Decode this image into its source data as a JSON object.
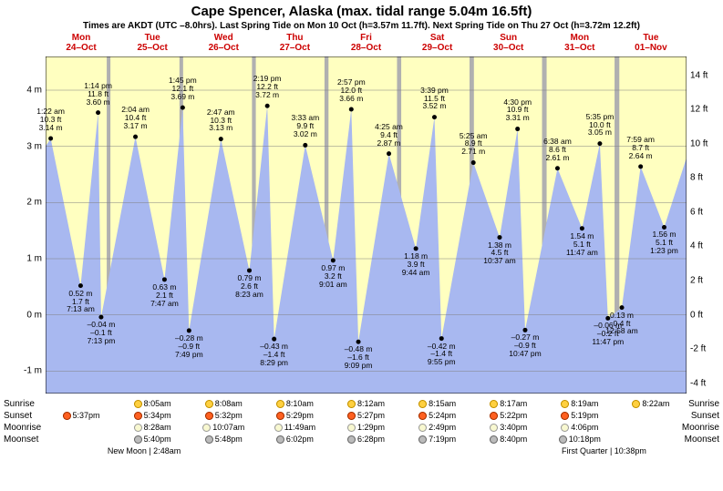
{
  "title": "Cape Spencer, Alaska (max. tidal range 5.04m 16.5ft)",
  "subtitle": "Times are AKDT (UTC –8.0hrs). Last Spring Tide on Mon 10 Oct (h=3.57m 11.7ft). Next Spring Tide on Thu 27 Oct (h=3.72m 12.2ft)",
  "days": [
    {
      "dow": "Mon",
      "date": "24–Oct",
      "sunrise": "",
      "sunset": "5:37pm",
      "moonrise": "",
      "moonset": ""
    },
    {
      "dow": "Tue",
      "date": "25–Oct",
      "sunrise": "8:05am",
      "sunset": "5:34pm",
      "moonrise": "8:28am",
      "moonset": "5:40pm"
    },
    {
      "dow": "Wed",
      "date": "26–Oct",
      "sunrise": "8:08am",
      "sunset": "5:32pm",
      "moonrise": "10:07am",
      "moonset": "5:48pm"
    },
    {
      "dow": "Thu",
      "date": "27–Oct",
      "sunrise": "8:10am",
      "sunset": "5:29pm",
      "moonrise": "11:49am",
      "moonset": "6:02pm"
    },
    {
      "dow": "Fri",
      "date": "28–Oct",
      "sunrise": "8:12am",
      "sunset": "5:27pm",
      "moonrise": "1:29pm",
      "moonset": "6:28pm"
    },
    {
      "dow": "Sat",
      "date": "29–Oct",
      "sunrise": "8:15am",
      "sunset": "5:24pm",
      "moonrise": "2:49pm",
      "moonset": "7:19pm"
    },
    {
      "dow": "Sun",
      "date": "30–Oct",
      "sunrise": "8:17am",
      "sunset": "5:22pm",
      "moonrise": "3:40pm",
      "moonset": "8:40pm"
    },
    {
      "dow": "Mon",
      "date": "31–Oct",
      "sunrise": "8:19am",
      "sunset": "5:19pm",
      "moonrise": "4:06pm",
      "moonset": "10:18pm"
    },
    {
      "dow": "Tue",
      "date": "01–Nov",
      "sunrise": "8:22am",
      "sunset": "",
      "moonrise": "",
      "moonset": ""
    }
  ],
  "axis": {
    "m_ticks": [
      -1,
      0,
      1,
      2,
      3,
      4
    ],
    "ft_ticks": [
      -4,
      -2,
      0,
      2,
      4,
      6,
      8,
      10,
      12,
      14
    ],
    "ymin_m": -1.4,
    "ymax_m": 4.6
  },
  "colors": {
    "tide_fill": "#a8b8f0",
    "day_band": "#ffffc0",
    "night_band": "#b0b0b0",
    "grid": "#808080",
    "date_text": "#cc0000",
    "dot": "#000000"
  },
  "day_bands": [
    {
      "start": 0.0,
      "end": 0.334
    },
    {
      "start": 0.354,
      "end": 0.731
    },
    {
      "start": 0.751,
      "end": 1.127
    },
    {
      "start": 1.148,
      "end": 1.523
    },
    {
      "start": 1.545,
      "end": 1.919
    },
    {
      "start": 1.942,
      "end": 2.315
    },
    {
      "start": 2.339,
      "end": 2.711
    },
    {
      "start": 2.736,
      "end": 3.107
    },
    {
      "start": 3.133,
      "end": 3.5
    }
  ],
  "tide_points": [
    {
      "x": 0.0,
      "m": 3.0
    },
    {
      "x": 0.042,
      "m": 3.14,
      "t": "1:22 am",
      "ft": "10.3 ft",
      "mlab": "3.14 m",
      "hi": true
    },
    {
      "x": 0.287,
      "m": 0.52,
      "t": "",
      "ft": "0.52 m",
      "mlab": "1.7 ft",
      "tl": "7:13 am"
    },
    {
      "x": 0.43,
      "m": 3.6,
      "t": "1:14 pm",
      "ft": "11.8 ft",
      "mlab": "3.60 m",
      "hi": true
    },
    {
      "x": 0.455,
      "m": -0.04,
      "t": "",
      "ft": "–0.04 m",
      "mlab": "–0.1 ft",
      "tl": "7:13 pm",
      "lo": true
    },
    {
      "x": 0.736,
      "m": 3.17,
      "t": "2:04 am",
      "ft": "10.4 ft",
      "mlab": "3.17 m",
      "hi": true
    },
    {
      "x": 0.974,
      "m": 0.63,
      "t": "",
      "ft": "0.63 m",
      "mlab": "2.1 ft",
      "tl": "7:47 am"
    },
    {
      "x": 1.123,
      "m": 3.69,
      "t": "1:45 pm",
      "ft": "12.1 ft",
      "mlab": "3.69 m",
      "hi": true
    },
    {
      "x": 1.175,
      "m": -0.28,
      "t": "",
      "ft": "–0.28 m",
      "mlab": "–0.9 ft",
      "tl": "7:49 pm",
      "lo": true
    },
    {
      "x": 1.436,
      "m": 3.13,
      "t": "2:47 am",
      "ft": "10.3 ft",
      "mlab": "3.13 m",
      "hi": true
    },
    {
      "x": 1.669,
      "m": 0.79,
      "t": "",
      "ft": "0.79 m",
      "mlab": "2.6 ft",
      "tl": "8:23 am"
    },
    {
      "x": 1.816,
      "m": 3.72,
      "t": "2:19 pm",
      "ft": "12.2 ft",
      "mlab": "3.72 m",
      "hi": true
    },
    {
      "x": 1.872,
      "m": -0.43,
      "t": "",
      "ft": "–0.43 m",
      "mlab": "–1.4 ft",
      "tl": "8:29 pm",
      "lo": true
    },
    {
      "x": 2.127,
      "m": 3.02,
      "t": "3:33 am",
      "ft": "9.9 ft",
      "mlab": "3.02 m",
      "hi": true
    },
    {
      "x": 2.355,
      "m": 0.97,
      "t": "",
      "ft": "0.97 m",
      "mlab": "3.2 ft",
      "tl": "9:01 am"
    },
    {
      "x": 2.504,
      "m": 3.66,
      "t": "2:57 pm",
      "ft": "12.0 ft",
      "mlab": "3.66 m",
      "hi": true
    },
    {
      "x": 2.562,
      "m": -0.48,
      "t": "",
      "ft": "–0.48 m",
      "mlab": "–1.6 ft",
      "tl": "9:09 pm",
      "lo": true
    },
    {
      "x": 2.812,
      "m": 2.87,
      "t": "4:25 am",
      "ft": "9.4 ft",
      "mlab": "2.87 m",
      "hi": true
    },
    {
      "x": 3.033,
      "m": 1.18,
      "t": "",
      "ft": "1.18 m",
      "mlab": "3.9 ft",
      "tl": "9:44 am"
    },
    {
      "x": 3.185,
      "m": 3.52,
      "t": "3:39 pm",
      "ft": "11.5 ft",
      "mlab": "3.52 m",
      "hi": true
    },
    {
      "x": 3.243,
      "m": -0.42,
      "t": "",
      "ft": "–0.42 m",
      "mlab": "–1.4 ft",
      "tl": "9:55 pm",
      "lo": true
    },
    {
      "x": 3.504,
      "m": 2.71,
      "t": "5:25 am",
      "ft": "8.9 ft",
      "mlab": "2.71 m",
      "hi": true
    },
    {
      "x": 3.719,
      "m": 1.38,
      "t": "",
      "ft": "1.38 m",
      "mlab": "4.5 ft",
      "tl": "10:37 am"
    },
    {
      "x": 3.866,
      "m": 3.31,
      "t": "4:30 pm",
      "ft": "10.9 ft",
      "mlab": "3.31 m",
      "hi": true
    },
    {
      "x": 3.928,
      "m": -0.27,
      "t": "",
      "ft": "–0.27 m",
      "mlab": "–0.9 ft",
      "tl": "10:47 pm",
      "lo": true
    },
    {
      "x": 4.193,
      "m": 2.61,
      "t": "6:38 am",
      "ft": "8.6 ft",
      "mlab": "2.61 m",
      "hi": true
    },
    {
      "x": 4.394,
      "m": 1.54,
      "t": "",
      "ft": "1.54 m",
      "mlab": "5.1 ft",
      "tl": "11:47 am"
    },
    {
      "x": 4.54,
      "m": 3.05,
      "t": "5:35 pm",
      "ft": "10.0 ft",
      "mlab": "3.05 m",
      "hi": true
    },
    {
      "x": 4.606,
      "m": -0.06,
      "t": "",
      "ft": "–0.06 m",
      "mlab": "–0.2 ft",
      "tl": "11:47 pm",
      "lo": true
    },
    {
      "x": 4.72,
      "m": 0.13,
      "t": "",
      "ft": "0.13 m",
      "mlab": "0.4 ft",
      "tl": "12:58 am"
    },
    {
      "x": 4.874,
      "m": 2.64,
      "t": "7:59 am",
      "ft": "8.7 ft",
      "mlab": "2.64 m",
      "hi": true
    },
    {
      "x": 5.067,
      "m": 1.56,
      "t": "",
      "ft": "1.56 m",
      "mlab": "5.1 ft",
      "tl": "1:23 pm"
    },
    {
      "x": 5.25,
      "m": 2.8
    }
  ],
  "total_halfdays": 5.25,
  "moon_phases": [
    {
      "text": "New Moon | 2:48am",
      "x": 0.88
    },
    {
      "text": "First Quarter | 10:38pm",
      "x": 4.6
    }
  ],
  "row_labels": {
    "sunrise": "Sunrise",
    "sunset": "Sunset",
    "moonrise": "Moonrise",
    "moonset": "Moonset"
  }
}
